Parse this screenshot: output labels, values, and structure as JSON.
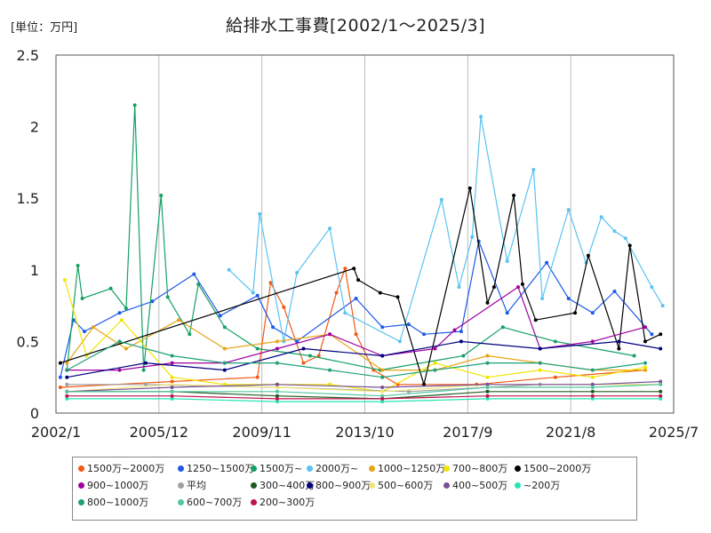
{
  "unit_label": "[単位：万円]",
  "chart_data": {
    "type": "line",
    "title": "給排水工事費[2002/1～2025/3]",
    "xlabel": "",
    "ylabel": "",
    "ylim": [
      0,
      2.5
    ],
    "y_ticks": [
      "0",
      "0.5",
      "1",
      "1.5",
      "2",
      "2.5"
    ],
    "x_range": [
      "2002-01",
      "2025-07"
    ],
    "x_ticks": [
      {
        "date": "2002-01",
        "label": "2002/1"
      },
      {
        "date": "2005-12",
        "label": "2005/12"
      },
      {
        "date": "2009-11",
        "label": "2009/11"
      },
      {
        "date": "2013-10",
        "label": "2013/10"
      },
      {
        "date": "2017-09",
        "label": "2017/9"
      },
      {
        "date": "2021-08",
        "label": "2021/8"
      },
      {
        "date": "2025-07",
        "label": "2025/7"
      }
    ],
    "grid": "vertical",
    "legend_position": "bottom",
    "series": [
      {
        "name": "1500万~2000万",
        "color": "#f05a14",
        "points": [
          [
            "2002-03",
            0.18
          ],
          [
            "2006-06",
            0.22
          ],
          [
            "2009-09",
            0.25
          ],
          [
            "2010-03",
            0.91
          ],
          [
            "2010-09",
            0.74
          ],
          [
            "2011-06",
            0.35
          ],
          [
            "2012-01",
            0.4
          ],
          [
            "2012-09",
            0.84
          ],
          [
            "2013-01",
            1.01
          ],
          [
            "2013-06",
            0.55
          ],
          [
            "2014-02",
            0.3
          ],
          [
            "2015-01",
            0.2
          ],
          [
            "2018-01",
            0.2
          ],
          [
            "2021-01",
            0.25
          ],
          [
            "2024-06",
            0.3
          ]
        ]
      },
      {
        "name": "1250~1500万",
        "color": "#1e5ae6",
        "points": [
          [
            "2002-03",
            0.25
          ],
          [
            "2002-09",
            0.65
          ],
          [
            "2003-02",
            0.57
          ],
          [
            "2004-06",
            0.7
          ],
          [
            "2005-09",
            0.78
          ],
          [
            "2007-04",
            0.97
          ],
          [
            "2008-04",
            0.68
          ],
          [
            "2009-09",
            0.82
          ],
          [
            "2010-04",
            0.6
          ],
          [
            "2011-03",
            0.5
          ],
          [
            "2013-06",
            0.8
          ],
          [
            "2014-06",
            0.6
          ],
          [
            "2015-06",
            0.62
          ],
          [
            "2016-01",
            0.55
          ],
          [
            "2017-06",
            0.57
          ],
          [
            "2018-02",
            1.2
          ],
          [
            "2019-03",
            0.7
          ],
          [
            "2020-09",
            1.05
          ],
          [
            "2021-07",
            0.8
          ],
          [
            "2022-06",
            0.7
          ],
          [
            "2023-04",
            0.85
          ],
          [
            "2024-09",
            0.55
          ]
        ]
      },
      {
        "name": "1500万~",
        "color": "#14a064",
        "points": [
          [
            "2002-06",
            0.3
          ],
          [
            "2002-11",
            1.03
          ],
          [
            "2003-01",
            0.8
          ],
          [
            "2004-02",
            0.87
          ],
          [
            "2004-09",
            0.73
          ],
          [
            "2005-01",
            2.15
          ],
          [
            "2005-05",
            0.3
          ],
          [
            "2006-01",
            1.52
          ],
          [
            "2006-04",
            0.81
          ],
          [
            "2007-02",
            0.55
          ],
          [
            "2007-06",
            0.9
          ],
          [
            "2008-06",
            0.6
          ],
          [
            "2009-09",
            0.45
          ],
          [
            "2011-09",
            0.4
          ],
          [
            "2014-05",
            0.3
          ],
          [
            "2017-07",
            0.4
          ],
          [
            "2019-01",
            0.6
          ],
          [
            "2021-01",
            0.5
          ],
          [
            "2024-01",
            0.4
          ]
        ]
      },
      {
        "name": "2000万~",
        "color": "#5ac3f0",
        "points": [
          [
            "2008-08",
            1.0
          ],
          [
            "2009-07",
            0.84
          ],
          [
            "2009-10",
            1.39
          ],
          [
            "2010-09",
            0.5
          ],
          [
            "2011-03",
            0.98
          ],
          [
            "2012-06",
            1.29
          ],
          [
            "2013-01",
            0.7
          ],
          [
            "2015-02",
            0.5
          ],
          [
            "2016-09",
            1.49
          ],
          [
            "2017-05",
            0.88
          ],
          [
            "2017-11",
            1.23
          ],
          [
            "2018-03",
            2.07
          ],
          [
            "2019-03",
            1.06
          ],
          [
            "2020-03",
            1.7
          ],
          [
            "2020-07",
            0.8
          ],
          [
            "2021-07",
            1.42
          ],
          [
            "2022-03",
            1.05
          ],
          [
            "2022-10",
            1.37
          ],
          [
            "2023-04",
            1.27
          ],
          [
            "2023-09",
            1.22
          ],
          [
            "2024-09",
            0.88
          ],
          [
            "2025-02",
            0.75
          ]
        ]
      },
      {
        "name": "1000~1250万",
        "color": "#e6a514",
        "points": [
          [
            "2002-06",
            0.35
          ],
          [
            "2003-06",
            0.6
          ],
          [
            "2004-09",
            0.45
          ],
          [
            "2006-09",
            0.65
          ],
          [
            "2008-06",
            0.45
          ],
          [
            "2010-06",
            0.5
          ],
          [
            "2012-06",
            0.55
          ],
          [
            "2014-06",
            0.3
          ],
          [
            "2016-06",
            0.3
          ],
          [
            "2018-06",
            0.4
          ],
          [
            "2020-06",
            0.35
          ],
          [
            "2022-06",
            0.3
          ],
          [
            "2024-06",
            0.3
          ]
        ]
      },
      {
        "name": "700~800万",
        "color": "#f0e600",
        "points": [
          [
            "2002-05",
            0.93
          ],
          [
            "2003-03",
            0.4
          ],
          [
            "2004-07",
            0.65
          ],
          [
            "2006-06",
            0.25
          ],
          [
            "2008-06",
            0.2
          ],
          [
            "2010-06",
            0.2
          ],
          [
            "2012-06",
            0.2
          ],
          [
            "2014-06",
            0.15
          ],
          [
            "2016-06",
            0.35
          ],
          [
            "2018-06",
            0.25
          ],
          [
            "2020-06",
            0.3
          ],
          [
            "2022-06",
            0.25
          ],
          [
            "2024-06",
            0.32
          ]
        ]
      },
      {
        "name": "1500~2000万",
        "color": "#000000",
        "points": [
          [
            "2002-03",
            0.35
          ],
          [
            "2013-05",
            1.01
          ],
          [
            "2013-07",
            0.93
          ],
          [
            "2014-05",
            0.84
          ],
          [
            "2015-01",
            0.81
          ],
          [
            "2016-01",
            0.2
          ],
          [
            "2017-10",
            1.57
          ],
          [
            "2018-06",
            0.77
          ],
          [
            "2018-09",
            0.88
          ],
          [
            "2019-06",
            1.52
          ],
          [
            "2019-10",
            0.9
          ],
          [
            "2020-04",
            0.65
          ],
          [
            "2021-10",
            0.7
          ],
          [
            "2022-04",
            1.1
          ],
          [
            "2023-06",
            0.45
          ],
          [
            "2023-11",
            1.17
          ],
          [
            "2024-06",
            0.5
          ],
          [
            "2025-01",
            0.55
          ]
        ]
      },
      {
        "name": "900~1000万",
        "color": "#a000a0",
        "points": [
          [
            "2002-06",
            0.3
          ],
          [
            "2004-06",
            0.3
          ],
          [
            "2006-06",
            0.35
          ],
          [
            "2008-06",
            0.35
          ],
          [
            "2010-06",
            0.45
          ],
          [
            "2012-06",
            0.55
          ],
          [
            "2014-06",
            0.4
          ],
          [
            "2016-06",
            0.45
          ],
          [
            "2017-03",
            0.58
          ],
          [
            "2019-08",
            0.88
          ],
          [
            "2020-06",
            0.45
          ],
          [
            "2022-06",
            0.5
          ],
          [
            "2024-06",
            0.6
          ]
        ]
      },
      {
        "name": "平均",
        "color": "#a0a0a0",
        "points": [
          [
            "2002-06",
            0.2
          ],
          [
            "2005-06",
            0.2
          ],
          [
            "2010-06",
            0.18
          ],
          [
            "2015-06",
            0.15
          ],
          [
            "2020-06",
            0.2
          ],
          [
            "2025-01",
            0.2
          ]
        ]
      },
      {
        "name": "300~400万",
        "color": "#1e5a1e",
        "points": [
          [
            "2002-06",
            0.15
          ],
          [
            "2006-06",
            0.15
          ],
          [
            "2010-06",
            0.12
          ],
          [
            "2014-06",
            0.1
          ],
          [
            "2018-06",
            0.15
          ],
          [
            "2022-06",
            0.15
          ],
          [
            "2025-01",
            0.15
          ]
        ]
      },
      {
        "name": "800~900万",
        "color": "#000080",
        "points": [
          [
            "2002-06",
            0.25
          ],
          [
            "2005-06",
            0.35
          ],
          [
            "2008-06",
            0.3
          ],
          [
            "2011-06",
            0.45
          ],
          [
            "2014-06",
            0.4
          ],
          [
            "2017-06",
            0.5
          ],
          [
            "2020-06",
            0.45
          ],
          [
            "2023-06",
            0.5
          ],
          [
            "2025-01",
            0.45
          ]
        ]
      },
      {
        "name": "500~600万",
        "color": "#f0e678",
        "points": [
          [
            "2002-06",
            0.15
          ],
          [
            "2006-06",
            0.2
          ],
          [
            "2010-06",
            0.18
          ],
          [
            "2014-06",
            0.15
          ],
          [
            "2018-06",
            0.2
          ],
          [
            "2022-06",
            0.2
          ],
          [
            "2025-01",
            0.2
          ]
        ]
      },
      {
        "name": "400~500万",
        "color": "#785096",
        "points": [
          [
            "2002-06",
            0.15
          ],
          [
            "2006-06",
            0.18
          ],
          [
            "2010-06",
            0.2
          ],
          [
            "2014-06",
            0.18
          ],
          [
            "2018-06",
            0.2
          ],
          [
            "2022-06",
            0.2
          ],
          [
            "2025-01",
            0.22
          ]
        ]
      },
      {
        "name": "~200万",
        "color": "#28e6b4",
        "points": [
          [
            "2002-06",
            0.1
          ],
          [
            "2006-06",
            0.1
          ],
          [
            "2010-06",
            0.08
          ],
          [
            "2014-06",
            0.08
          ],
          [
            "2018-06",
            0.1
          ],
          [
            "2022-06",
            0.1
          ],
          [
            "2025-01",
            0.1
          ]
        ]
      },
      {
        "name": "800~1000万",
        "color": "#1ea078",
        "points": [
          [
            "2002-06",
            0.3
          ],
          [
            "2004-06",
            0.5
          ],
          [
            "2006-06",
            0.4
          ],
          [
            "2008-06",
            0.35
          ],
          [
            "2010-06",
            0.35
          ],
          [
            "2012-06",
            0.3
          ],
          [
            "2014-06",
            0.25
          ],
          [
            "2016-06",
            0.3
          ],
          [
            "2018-06",
            0.35
          ],
          [
            "2020-06",
            0.35
          ],
          [
            "2022-06",
            0.3
          ],
          [
            "2024-06",
            0.35
          ]
        ]
      },
      {
        "name": "600~700万",
        "color": "#50c8a0",
        "points": [
          [
            "2002-06",
            0.15
          ],
          [
            "2006-06",
            0.15
          ],
          [
            "2010-06",
            0.15
          ],
          [
            "2014-06",
            0.12
          ],
          [
            "2018-06",
            0.18
          ],
          [
            "2022-06",
            0.18
          ],
          [
            "2025-01",
            0.2
          ]
        ]
      },
      {
        "name": "200~300万",
        "color": "#be1450",
        "points": [
          [
            "2002-06",
            0.12
          ],
          [
            "2006-06",
            0.12
          ],
          [
            "2010-06",
            0.1
          ],
          [
            "2014-06",
            0.1
          ],
          [
            "2018-06",
            0.12
          ],
          [
            "2022-06",
            0.12
          ],
          [
            "2025-01",
            0.12
          ]
        ]
      }
    ]
  }
}
